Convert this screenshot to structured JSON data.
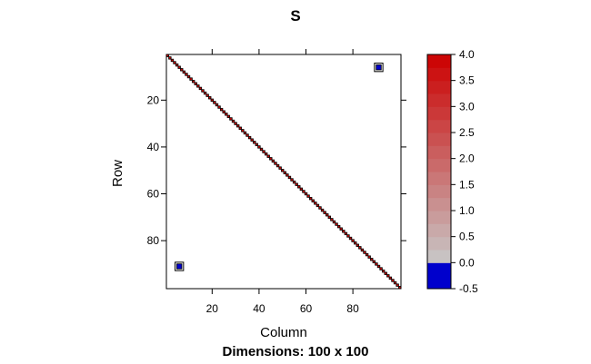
{
  "chart_data": {
    "type": "heatmap",
    "title": "S",
    "xlabel": "Column",
    "ylabel": "Row",
    "subtitle": "Dimensions: 100 x 100",
    "nrow": 100,
    "ncol": 100,
    "xlim": [
      1,
      100
    ],
    "ylim": [
      100,
      1
    ],
    "x_ticks": [
      20,
      40,
      60,
      80
    ],
    "y_ticks": [
      20,
      40,
      60,
      80
    ],
    "x_tick_labels": [
      "20",
      "40",
      "60",
      "80"
    ],
    "y_tick_labels": [
      "20",
      "40",
      "60",
      "80"
    ],
    "diagonal_value": 4.0,
    "offdiagonal_entries": [
      {
        "row": 6,
        "col": 91,
        "value": -0.5
      },
      {
        "row": 91,
        "col": 6,
        "value": -0.5
      }
    ],
    "colorbar": {
      "min": -0.5,
      "max": 4.0,
      "ticks": [
        4.0,
        3.5,
        3.0,
        2.5,
        2.0,
        1.5,
        1.0,
        0.5,
        0.0,
        -0.5
      ],
      "tick_labels": [
        "4.0",
        "3.5",
        "3.0",
        "2.5",
        "2.0",
        "1.5",
        "1.0",
        "0.5",
        "0.0",
        "-0.5"
      ],
      "low_color": "#0000cc",
      "mid_color": "#c8c8c8",
      "high_color": "#cc0000"
    },
    "cell_border_color": "#000000",
    "grid": false
  }
}
